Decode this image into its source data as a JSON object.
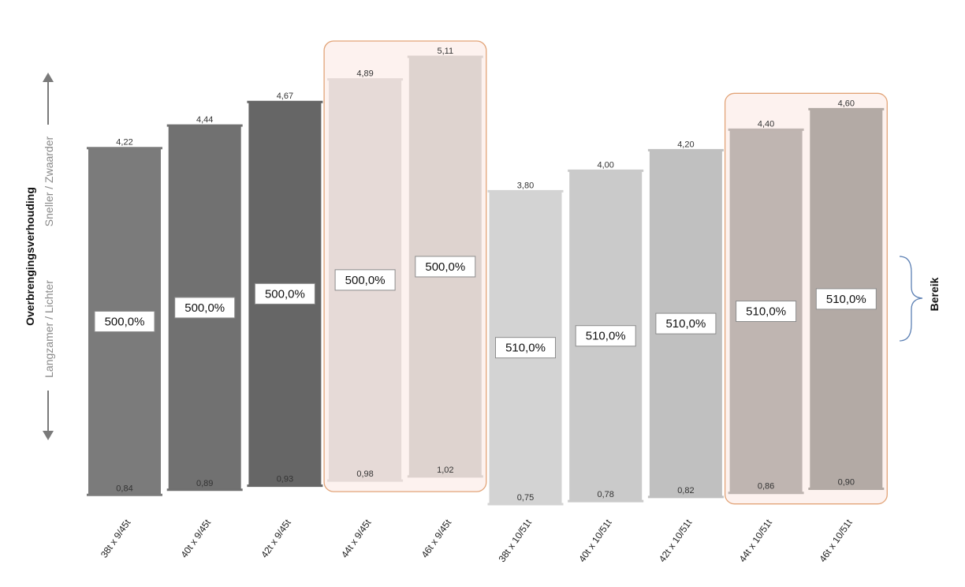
{
  "chart_data": {
    "type": "bar",
    "subtype": "floating-range",
    "categories": [
      "38t x 9/45t",
      "40t x 9/45t",
      "42t x 9/45t",
      "44t x 9/45t",
      "46t x 9/45t",
      "38t x 10/51t",
      "40t x 10/51t",
      "42t x 10/51t",
      "44t x 10/51t",
      "46t x 10/51t"
    ],
    "series": [
      {
        "values_high": [
          4.22,
          4.44,
          4.67,
          4.89,
          5.11,
          3.8,
          4.0,
          4.2,
          4.4,
          4.6
        ],
        "values_low": [
          0.84,
          0.89,
          0.93,
          0.98,
          1.02,
          0.75,
          0.78,
          0.82,
          0.86,
          0.9
        ],
        "labels_high": [
          "4,22",
          "4,44",
          "4,67",
          "4,89",
          "5,11",
          "3,80",
          "4,00",
          "4,20",
          "4,40",
          "4,60"
        ],
        "labels_low": [
          "0,84",
          "0,89",
          "0,93",
          "0,98",
          "1,02",
          "0,75",
          "0,78",
          "0,82",
          "0,86",
          "0,90"
        ],
        "range_labels": [
          "500,0%",
          "500,0%",
          "500,0%",
          "500,0%",
          "500,0%",
          "510,0%",
          "510,0%",
          "510,0%",
          "510,0%",
          "510,0%"
        ]
      }
    ],
    "bar_colors": [
      "#7b7b7b",
      "#717171",
      "#666666",
      "#e6dad7",
      "#ded3cf",
      "#d3d3d3",
      "#cacaca",
      "#c0c0c0",
      "#bfb5b1",
      "#b3aaa5"
    ],
    "highlighted_groups": [
      [
        3,
        4
      ],
      [
        8,
        9
      ]
    ],
    "highlight_fill": "#fdf2ef",
    "highlight_border": "#e2a478",
    "ylabel": "Overbrengingsverhouding",
    "ylabel_up": "Sneller / Zwaarder",
    "ylabel_down": "Langzamer / Lichter",
    "bracket_label": "Bereik",
    "bracket_color": "#5b7fb3",
    "ylim": [
      0.7,
      5.15
    ],
    "grid": false,
    "legend": "none"
  }
}
